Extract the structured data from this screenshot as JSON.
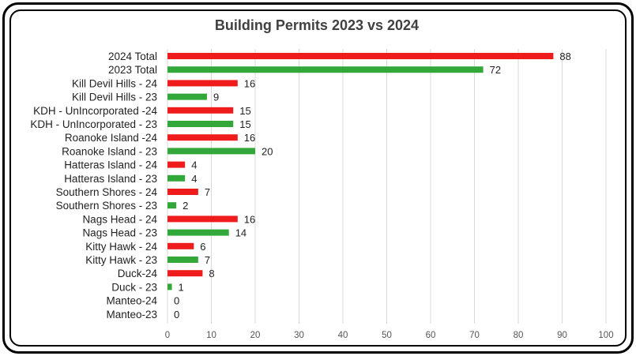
{
  "chart_data": {
    "type": "bar",
    "orientation": "horizontal",
    "title": "Building Permits 2023 vs 2024",
    "xlim": [
      0,
      100
    ],
    "xticks": [
      0,
      10,
      20,
      30,
      40,
      50,
      60,
      70,
      80,
      90,
      100
    ],
    "grid": true,
    "legend": "none",
    "colors": {
      "y2024": "#ee1c1c",
      "y2023": "#33a83a"
    },
    "bars": [
      {
        "label": "2024 Total",
        "value": 88,
        "year": "2024"
      },
      {
        "label": "2023 Total",
        "value": 72,
        "year": "2023"
      },
      {
        "label": "Kill Devil Hills - 24",
        "value": 16,
        "year": "2024"
      },
      {
        "label": "Kill Devil Hills - 23",
        "value": 9,
        "year": "2023"
      },
      {
        "label": "KDH - UnIncorporated -24",
        "value": 15,
        "year": "2024"
      },
      {
        "label": "KDH - UnIncorporated - 23",
        "value": 15,
        "year": "2023"
      },
      {
        "label": "Roanoke Island -24",
        "value": 16,
        "year": "2024"
      },
      {
        "label": "Roanoke Island - 23",
        "value": 20,
        "year": "2023"
      },
      {
        "label": "Hatteras Island - 24",
        "value": 4,
        "year": "2024"
      },
      {
        "label": "Hatteras Island - 23",
        "value": 4,
        "year": "2023"
      },
      {
        "label": "Southern Shores - 24",
        "value": 7,
        "year": "2024"
      },
      {
        "label": "Southern Shores - 23",
        "value": 2,
        "year": "2023"
      },
      {
        "label": "Nags Head - 24",
        "value": 16,
        "year": "2024"
      },
      {
        "label": "Nags Head - 23",
        "value": 14,
        "year": "2023"
      },
      {
        "label": "Kitty Hawk - 24",
        "value": 6,
        "year": "2024"
      },
      {
        "label": "Kitty Hawk - 23",
        "value": 7,
        "year": "2023"
      },
      {
        "label": "Duck-24",
        "value": 8,
        "year": "2024"
      },
      {
        "label": "Duck - 23",
        "value": 1,
        "year": "2023"
      },
      {
        "label": "Manteo-24",
        "value": 0,
        "year": "2024"
      },
      {
        "label": "Manteo-23",
        "value": 0,
        "year": "2023"
      }
    ]
  }
}
